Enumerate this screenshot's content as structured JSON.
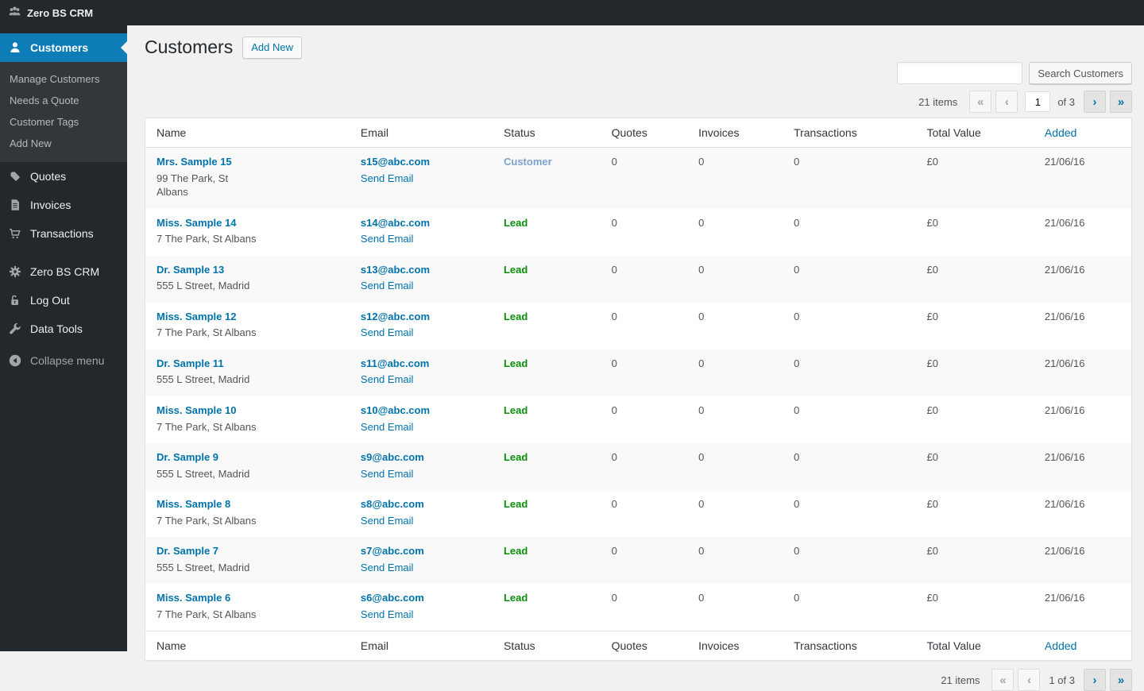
{
  "admin_bar": {
    "title": "Zero BS CRM"
  },
  "sidebar": {
    "customers": "Customers",
    "submenu": [
      "Manage Customers",
      "Needs a Quote",
      "Customer Tags",
      "Add New"
    ],
    "quotes": "Quotes",
    "invoices": "Invoices",
    "transactions": "Transactions",
    "settings": "Zero BS CRM",
    "logout": "Log Out",
    "datatools": "Data Tools",
    "collapse": "Collapse menu"
  },
  "header": {
    "title": "Customers",
    "add_new": "Add New"
  },
  "search": {
    "value": "",
    "button": "Search Customers"
  },
  "pagination": {
    "items": "21 items",
    "first": "«",
    "prev": "‹",
    "next": "›",
    "last": "»",
    "current": "1",
    "of": "of 3",
    "bottom_range": "1 of 3"
  },
  "table": {
    "columns": [
      "Name",
      "Email",
      "Status",
      "Quotes",
      "Invoices",
      "Transactions",
      "Total Value",
      "Added"
    ],
    "send_email_label": "Send Email",
    "rows": [
      {
        "name": "Mrs. Sample 15",
        "address": "99 The Park, St Albans",
        "email": "s15@abc.com",
        "status": "Customer",
        "status_type": "customer",
        "quotes": "0",
        "invoices": "0",
        "transactions": "0",
        "total": "£0",
        "added": "21/06/16"
      },
      {
        "name": "Miss. Sample 14",
        "address": "7 The Park, St Albans",
        "email": "s14@abc.com",
        "status": "Lead",
        "status_type": "lead",
        "quotes": "0",
        "invoices": "0",
        "transactions": "0",
        "total": "£0",
        "added": "21/06/16"
      },
      {
        "name": "Dr. Sample 13",
        "address": "555 L Street, Madrid",
        "email": "s13@abc.com",
        "status": "Lead",
        "status_type": "lead",
        "quotes": "0",
        "invoices": "0",
        "transactions": "0",
        "total": "£0",
        "added": "21/06/16"
      },
      {
        "name": "Miss. Sample 12",
        "address": "7 The Park, St Albans",
        "email": "s12@abc.com",
        "status": "Lead",
        "status_type": "lead",
        "quotes": "0",
        "invoices": "0",
        "transactions": "0",
        "total": "£0",
        "added": "21/06/16"
      },
      {
        "name": "Dr. Sample 11",
        "address": "555 L Street, Madrid",
        "email": "s11@abc.com",
        "status": "Lead",
        "status_type": "lead",
        "quotes": "0",
        "invoices": "0",
        "transactions": "0",
        "total": "£0",
        "added": "21/06/16"
      },
      {
        "name": "Miss. Sample 10",
        "address": "7 The Park, St Albans",
        "email": "s10@abc.com",
        "status": "Lead",
        "status_type": "lead",
        "quotes": "0",
        "invoices": "0",
        "transactions": "0",
        "total": "£0",
        "added": "21/06/16"
      },
      {
        "name": "Dr. Sample 9",
        "address": "555 L Street, Madrid",
        "email": "s9@abc.com",
        "status": "Lead",
        "status_type": "lead",
        "quotes": "0",
        "invoices": "0",
        "transactions": "0",
        "total": "£0",
        "added": "21/06/16"
      },
      {
        "name": "Miss. Sample 8",
        "address": "7 The Park, St Albans",
        "email": "s8@abc.com",
        "status": "Lead",
        "status_type": "lead",
        "quotes": "0",
        "invoices": "0",
        "transactions": "0",
        "total": "£0",
        "added": "21/06/16"
      },
      {
        "name": "Dr. Sample 7",
        "address": "555 L Street, Madrid",
        "email": "s7@abc.com",
        "status": "Lead",
        "status_type": "lead",
        "quotes": "0",
        "invoices": "0",
        "transactions": "0",
        "total": "£0",
        "added": "21/06/16"
      },
      {
        "name": "Miss. Sample 6",
        "address": "7 The Park, St Albans",
        "email": "s6@abc.com",
        "status": "Lead",
        "status_type": "lead",
        "quotes": "0",
        "invoices": "0",
        "transactions": "0",
        "total": "£0",
        "added": "21/06/16"
      }
    ]
  },
  "colors": {
    "accent": "#0073aa",
    "active_menu": "#0e7cb7",
    "admin_bar_bg": "#23282d",
    "status": {
      "customer": "#7da0cf",
      "lead": "#0a8f0a"
    }
  }
}
